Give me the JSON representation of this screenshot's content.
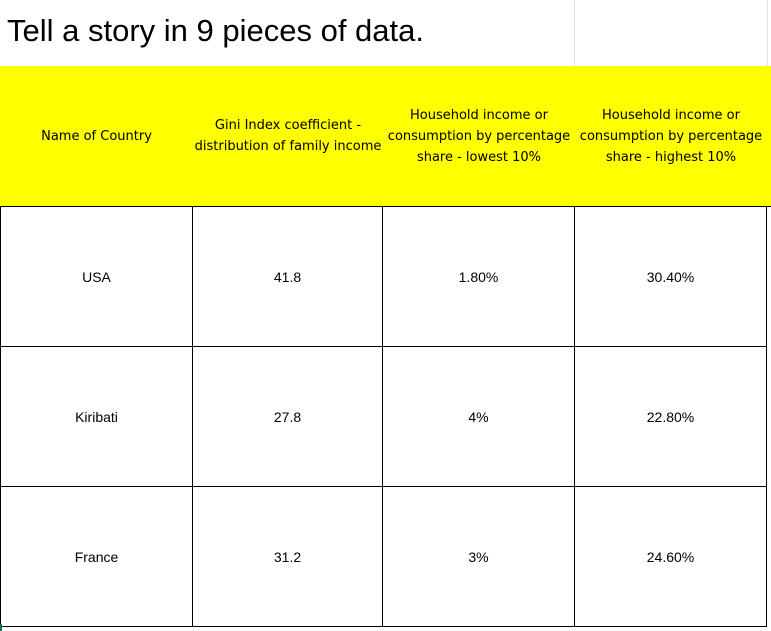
{
  "title": "Tell a story in 9 pieces of data.",
  "table": {
    "headers": [
      "Name of Country",
      "Gini Index coefficient -\ndistribution of family income",
      "Household income or\nconsumption by percentage\nshare - lowest 10%",
      "Household income or\nconsumption by percentage\nshare - highest 10%"
    ],
    "rows": [
      [
        "USA",
        "41.8",
        "1.80%",
        "30.40%"
      ],
      [
        "Kiribati",
        "27.8",
        "4%",
        "22.80%"
      ],
      [
        "France",
        "31.2",
        "3%",
        "24.60%"
      ]
    ]
  },
  "colors": {
    "header_fill": "#ffff00",
    "grid_lines": "#000000"
  }
}
